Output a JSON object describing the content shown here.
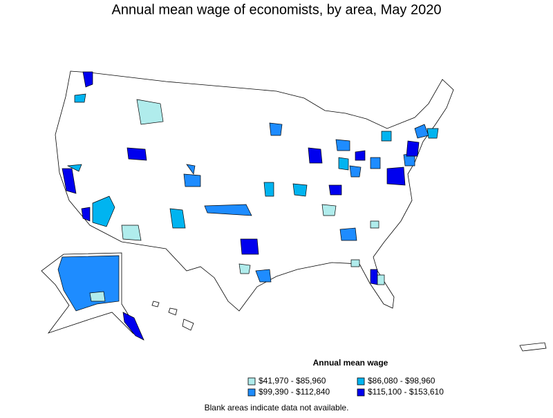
{
  "title": "Annual mean wage of economists, by area, May 2020",
  "legend": {
    "title": "Annual mean wage",
    "items": [
      {
        "label": "$41,970 - $85,960",
        "color": "#b0ecec"
      },
      {
        "label": "$86,080 - $98,960",
        "color": "#00b4f0"
      },
      {
        "label": "$99,390 - $112,840",
        "color": "#1e8cff"
      },
      {
        "label": "$115,100 - $153,610",
        "color": "#0000ee"
      }
    ]
  },
  "note": "Blank areas indicate data not available."
}
